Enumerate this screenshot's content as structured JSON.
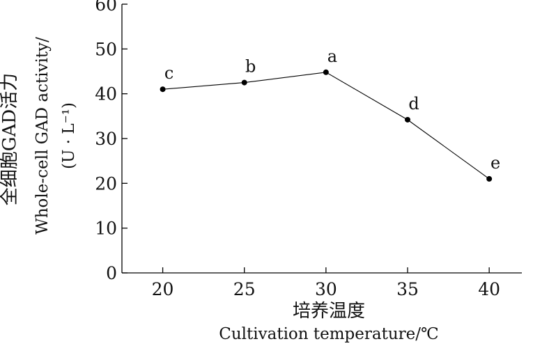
{
  "chart_data": {
    "type": "line",
    "x": [
      20,
      25,
      30,
      35,
      40
    ],
    "series": [
      {
        "values": [
          41.0,
          42.5,
          44.8,
          34.2,
          21.0
        ],
        "labels": [
          "c",
          "b",
          "a",
          "d",
          "e"
        ]
      }
    ],
    "xlim": [
      17.5,
      42
    ],
    "ylim": [
      0,
      60
    ],
    "x_ticks": [
      "20",
      "25",
      "30",
      "35",
      "40"
    ],
    "y_ticks": [
      "0",
      "10",
      "20",
      "30",
      "40",
      "50",
      "60"
    ],
    "xlabel_cn": "培养温度",
    "xlabel_en": "Cultivation temperature/℃",
    "ylabel_cn": "全细胞GAD活力",
    "ylabel_en": "Whole-cell GAD activity/",
    "ylabel_unit": "(U · L⁻¹)",
    "grid": false,
    "legend": "none"
  }
}
